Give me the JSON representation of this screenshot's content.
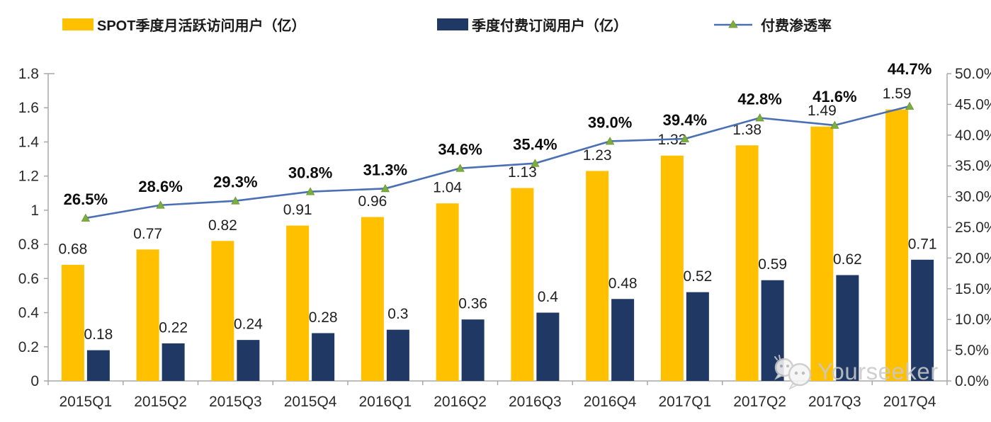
{
  "watermark": {
    "text": "Yourseeker",
    "icon": "wechat-icon"
  },
  "chart_data": {
    "type": "bar+line combo",
    "title": "",
    "legend_position": "top",
    "grid": false,
    "categories": [
      "2015Q1",
      "2015Q2",
      "2015Q3",
      "2015Q4",
      "2016Q1",
      "2016Q2",
      "2016Q3",
      "2016Q4",
      "2017Q1",
      "2017Q2",
      "2017Q3",
      "2017Q4"
    ],
    "series": [
      {
        "name": "SPOT季度月活跃访问用户（亿）",
        "type": "bar",
        "axis": "left",
        "color": "#FFC000",
        "values": [
          0.68,
          0.77,
          0.82,
          0.91,
          0.96,
          1.04,
          1.13,
          1.23,
          1.32,
          1.38,
          1.49,
          1.59
        ],
        "labels": [
          "0.68",
          "0.77",
          "0.82",
          "0.91",
          "0.96",
          "1.04",
          "1.13",
          "1.23",
          "1.32",
          "1.38",
          "1.49",
          "1.59"
        ]
      },
      {
        "name": "季度付费订阅用户（亿）",
        "type": "bar",
        "axis": "left",
        "color": "#1F3864",
        "values": [
          0.18,
          0.22,
          0.24,
          0.28,
          0.3,
          0.36,
          0.4,
          0.48,
          0.52,
          0.59,
          0.62,
          0.71
        ],
        "labels": [
          "0.18",
          "0.22",
          "0.24",
          "0.28",
          "0.3",
          "0.36",
          "0.4",
          "0.48",
          "0.52",
          "0.59",
          "0.62",
          "0.71"
        ]
      },
      {
        "name": "付费渗透率",
        "type": "line",
        "axis": "right",
        "color": "#4A6FB5",
        "marker": "triangle",
        "marker_color": "#7CAE3E",
        "values": [
          26.5,
          28.6,
          29.3,
          30.8,
          31.3,
          34.6,
          35.4,
          39.0,
          39.4,
          42.8,
          41.6,
          44.7
        ],
        "labels": [
          "26.5%",
          "28.6%",
          "29.3%",
          "30.8%",
          "31.3%",
          "34.6%",
          "35.4%",
          "39.0%",
          "39.4%",
          "42.8%",
          "41.6%",
          "44.7%"
        ]
      }
    ],
    "left_axis": {
      "min": 0,
      "max": 1.8,
      "step": 0.2,
      "ticks": [
        "1.8",
        "1.6",
        "1.4",
        "1.2",
        "1",
        "0.8",
        "0.6",
        "0.4",
        "0.2",
        "0"
      ]
    },
    "right_axis": {
      "min": 0,
      "max": 50,
      "step": 5,
      "ticks": [
        "50.0%",
        "45.0%",
        "40.0%",
        "35.0%",
        "30.0%",
        "25.0%",
        "20.0%",
        "15.0%",
        "10.0%",
        "5.0%",
        "0.0%"
      ]
    }
  }
}
